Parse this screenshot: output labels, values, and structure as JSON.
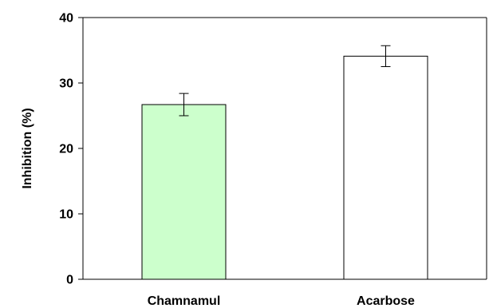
{
  "chart_data": {
    "type": "bar",
    "categories": [
      "Chamnamul",
      "Acarbose"
    ],
    "values": [
      26.7,
      34.1
    ],
    "errors": [
      1.7,
      1.6
    ],
    "bar_colors": [
      "#ccffcc",
      "#ffffff"
    ],
    "xlabel": "",
    "ylabel": "Inhibition (%)",
    "ylim": [
      0,
      40
    ],
    "yticks": [
      0,
      10,
      20,
      30,
      40
    ],
    "ytick_labels": [
      "0",
      "10",
      "20",
      "30",
      "40"
    ],
    "grid": false,
    "legend": "none"
  }
}
